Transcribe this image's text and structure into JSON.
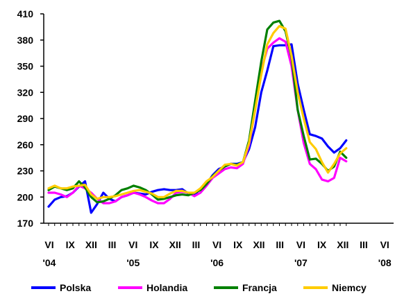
{
  "chart_data": {
    "type": "line",
    "title": "",
    "xlabel": "",
    "ylabel": "",
    "ylim": [
      170,
      410
    ],
    "y_ticks": [
      170,
      200,
      230,
      260,
      290,
      320,
      350,
      380,
      410
    ],
    "x_month_labels": [
      "VI",
      "IX",
      "XII",
      "III",
      "VI",
      "IX",
      "XII",
      "III",
      "VI",
      "IX",
      "XII",
      "III",
      "VI",
      "IX",
      "XII",
      "III",
      "VI"
    ],
    "x_year_labels": [
      "'04",
      "'05",
      "'06",
      "'07",
      "'08"
    ],
    "grid": false,
    "legend_position": "bottom",
    "series": [
      {
        "name": "Polska",
        "color": "#0000ff",
        "values": [
          189,
          197,
          200,
          201,
          205,
          212,
          218,
          182,
          192,
          205,
          198,
          195,
          200,
          202,
          205,
          204,
          203,
          206,
          208,
          209,
          208,
          208,
          209,
          204,
          202,
          210,
          215,
          225,
          232,
          235,
          238,
          238,
          240,
          255,
          280,
          320,
          345,
          373,
          374,
          374,
          375,
          330,
          300,
          272,
          270,
          267,
          258,
          251,
          256,
          265
        ]
      },
      {
        "name": "Holandia",
        "color": "#ff00ff",
        "values": [
          205,
          205,
          203,
          200,
          205,
          213,
          210,
          205,
          198,
          193,
          193,
          195,
          200,
          202,
          205,
          203,
          200,
          196,
          193,
          193,
          198,
          205,
          206,
          205,
          201,
          205,
          213,
          222,
          227,
          232,
          234,
          233,
          238,
          260,
          300,
          345,
          370,
          377,
          382,
          378,
          350,
          300,
          262,
          238,
          232,
          220,
          218,
          222,
          245,
          241
        ]
      },
      {
        "name": "Francja",
        "color": "#008000",
        "values": [
          208,
          212,
          210,
          208,
          210,
          218,
          211,
          200,
          194,
          195,
          198,
          202,
          208,
          210,
          213,
          211,
          208,
          203,
          197,
          198,
          200,
          202,
          203,
          202,
          205,
          208,
          215,
          224,
          230,
          235,
          238,
          237,
          240,
          265,
          310,
          355,
          392,
          400,
          402,
          390,
          360,
          300,
          270,
          243,
          244,
          238,
          230,
          235,
          252,
          245
        ]
      },
      {
        "name": "Niemcy",
        "color": "#ffcc00",
        "values": [
          210,
          213,
          210,
          210,
          212,
          213,
          214,
          203,
          198,
          200,
          200,
          201,
          203,
          205,
          207,
          208,
          206,
          204,
          200,
          200,
          204,
          207,
          207,
          205,
          205,
          210,
          218,
          223,
          230,
          237,
          238,
          236,
          240,
          262,
          300,
          340,
          375,
          388,
          396,
          393,
          362,
          320,
          290,
          263,
          255,
          240,
          228,
          238,
          250,
          256
        ]
      }
    ]
  }
}
